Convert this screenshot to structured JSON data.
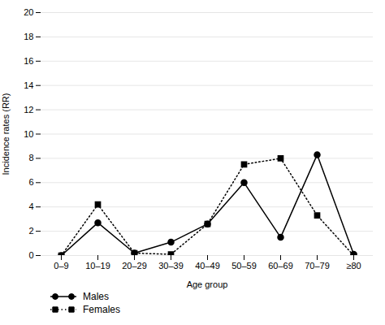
{
  "chart_data": {
    "type": "line",
    "categories": [
      "0–9",
      "10–19",
      "20–29",
      "30–39",
      "40–49",
      "50–59",
      "60–69",
      "70–79",
      "≥80"
    ],
    "series": [
      {
        "name": "Males",
        "color": "#000000",
        "marker": "circle",
        "line_style": "solid",
        "values": [
          0,
          2.7,
          0.2,
          1.1,
          2.6,
          6.0,
          1.5,
          8.3,
          0.1
        ]
      },
      {
        "name": "Females",
        "color": "#000000",
        "marker": "square",
        "line_style": "dotted",
        "values": [
          0,
          4.2,
          0.2,
          0.1,
          2.6,
          7.5,
          8.0,
          3.3,
          0.0
        ]
      }
    ],
    "xlabel": "Age group",
    "ylabel": "Incidence rates (RR)",
    "ylim": [
      0,
      20
    ],
    "yticks": [
      0,
      2,
      4,
      6,
      8,
      10,
      12,
      14,
      16,
      18,
      20
    ],
    "grid": true,
    "legend": "bottom"
  }
}
